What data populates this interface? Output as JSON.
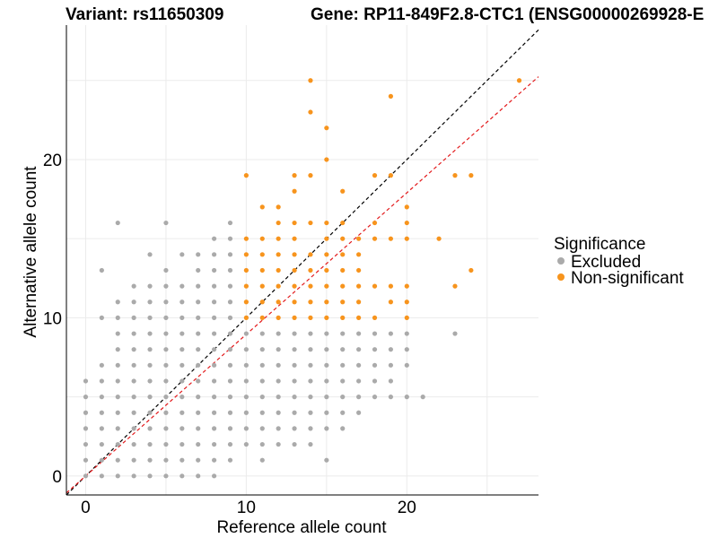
{
  "chart_data": {
    "type": "scatter",
    "title_left": "Variant: rs11650309",
    "title_right": "Gene: RP11-849F2.8-CTC1 (ENSG00000269928-E",
    "xlabel": "Reference allele count",
    "ylabel": "Alternative allele count",
    "xlim": [
      -1.2,
      28.2
    ],
    "ylim": [
      -1.2,
      28.5
    ],
    "x_ticks": [
      0,
      10,
      20
    ],
    "y_ticks": [
      0,
      10,
      20
    ],
    "grid": true,
    "legend": {
      "title": "Significance",
      "position": "right",
      "entries": [
        {
          "label": "Excluded",
          "color": "#aaaaaa"
        },
        {
          "label": "Non-significant",
          "color": "#f7941d"
        }
      ]
    },
    "reference_lines": [
      {
        "name": "identity",
        "slope": 1,
        "intercept": 0,
        "color": "#000000",
        "style": "dashed"
      },
      {
        "name": "fit",
        "slope": 0.895,
        "intercept": 0,
        "color": "#e31a1c",
        "style": "dashed"
      }
    ],
    "series": [
      {
        "name": "Excluded",
        "color": "#aaaaaa",
        "points": [
          [
            0,
            0
          ],
          [
            0,
            1
          ],
          [
            0,
            2
          ],
          [
            0,
            3
          ],
          [
            0,
            4
          ],
          [
            0,
            5
          ],
          [
            0,
            6
          ],
          [
            1,
            0
          ],
          [
            1,
            1
          ],
          [
            1,
            2
          ],
          [
            1,
            3
          ],
          [
            1,
            4
          ],
          [
            1,
            5
          ],
          [
            1,
            6
          ],
          [
            1,
            7
          ],
          [
            1,
            10
          ],
          [
            1,
            13
          ],
          [
            2,
            0
          ],
          [
            2,
            1
          ],
          [
            2,
            2
          ],
          [
            2,
            3
          ],
          [
            2,
            4
          ],
          [
            2,
            5
          ],
          [
            2,
            6
          ],
          [
            2,
            7
          ],
          [
            2,
            8
          ],
          [
            2,
            9
          ],
          [
            2,
            10
          ],
          [
            2,
            11
          ],
          [
            2,
            16
          ],
          [
            3,
            0
          ],
          [
            3,
            1
          ],
          [
            3,
            2
          ],
          [
            3,
            3
          ],
          [
            3,
            4
          ],
          [
            3,
            5
          ],
          [
            3,
            6
          ],
          [
            3,
            7
          ],
          [
            3,
            8
          ],
          [
            3,
            9
          ],
          [
            3,
            10
          ],
          [
            3,
            11
          ],
          [
            3,
            12
          ],
          [
            4,
            0
          ],
          [
            4,
            1
          ],
          [
            4,
            2
          ],
          [
            4,
            3
          ],
          [
            4,
            4
          ],
          [
            4,
            5
          ],
          [
            4,
            6
          ],
          [
            4,
            7
          ],
          [
            4,
            8
          ],
          [
            4,
            9
          ],
          [
            4,
            10
          ],
          [
            4,
            11
          ],
          [
            4,
            12
          ],
          [
            4,
            14
          ],
          [
            5,
            0
          ],
          [
            5,
            1
          ],
          [
            5,
            2
          ],
          [
            5,
            3
          ],
          [
            5,
            4
          ],
          [
            5,
            5
          ],
          [
            5,
            6
          ],
          [
            5,
            7
          ],
          [
            5,
            8
          ],
          [
            5,
            9
          ],
          [
            5,
            10
          ],
          [
            5,
            11
          ],
          [
            5,
            12
          ],
          [
            5,
            13
          ],
          [
            5,
            16
          ],
          [
            6,
            0
          ],
          [
            6,
            1
          ],
          [
            6,
            2
          ],
          [
            6,
            3
          ],
          [
            6,
            4
          ],
          [
            6,
            5
          ],
          [
            6,
            6
          ],
          [
            6,
            7
          ],
          [
            6,
            8
          ],
          [
            6,
            9
          ],
          [
            6,
            10
          ],
          [
            6,
            11
          ],
          [
            6,
            12
          ],
          [
            6,
            14
          ],
          [
            7,
            0
          ],
          [
            7,
            1
          ],
          [
            7,
            2
          ],
          [
            7,
            3
          ],
          [
            7,
            4
          ],
          [
            7,
            5
          ],
          [
            7,
            6
          ],
          [
            7,
            7
          ],
          [
            7,
            8
          ],
          [
            7,
            9
          ],
          [
            7,
            10
          ],
          [
            7,
            11
          ],
          [
            7,
            12
          ],
          [
            7,
            13
          ],
          [
            7,
            14
          ],
          [
            8,
            0
          ],
          [
            8,
            1
          ],
          [
            8,
            2
          ],
          [
            8,
            3
          ],
          [
            8,
            4
          ],
          [
            8,
            5
          ],
          [
            8,
            6
          ],
          [
            8,
            7
          ],
          [
            8,
            8
          ],
          [
            8,
            9
          ],
          [
            8,
            10
          ],
          [
            8,
            11
          ],
          [
            8,
            12
          ],
          [
            8,
            13
          ],
          [
            8,
            14
          ],
          [
            8,
            15
          ],
          [
            9,
            1
          ],
          [
            9,
            2
          ],
          [
            9,
            3
          ],
          [
            9,
            4
          ],
          [
            9,
            5
          ],
          [
            9,
            6
          ],
          [
            9,
            7
          ],
          [
            9,
            8
          ],
          [
            9,
            9
          ],
          [
            9,
            10
          ],
          [
            9,
            11
          ],
          [
            9,
            12
          ],
          [
            9,
            13
          ],
          [
            9,
            14
          ],
          [
            9,
            15
          ],
          [
            9,
            16
          ],
          [
            10,
            2
          ],
          [
            10,
            3
          ],
          [
            10,
            4
          ],
          [
            10,
            5
          ],
          [
            10,
            6
          ],
          [
            10,
            7
          ],
          [
            10,
            8
          ],
          [
            10,
            9
          ],
          [
            11,
            1
          ],
          [
            11,
            2
          ],
          [
            11,
            3
          ],
          [
            11,
            4
          ],
          [
            11,
            5
          ],
          [
            11,
            6
          ],
          [
            11,
            7
          ],
          [
            11,
            8
          ],
          [
            11,
            9
          ],
          [
            12,
            2
          ],
          [
            12,
            3
          ],
          [
            12,
            4
          ],
          [
            12,
            5
          ],
          [
            12,
            6
          ],
          [
            12,
            7
          ],
          [
            12,
            8
          ],
          [
            12,
            9
          ],
          [
            13,
            2
          ],
          [
            13,
            3
          ],
          [
            13,
            4
          ],
          [
            13,
            5
          ],
          [
            13,
            6
          ],
          [
            13,
            7
          ],
          [
            13,
            8
          ],
          [
            13,
            9
          ],
          [
            14,
            2
          ],
          [
            14,
            3
          ],
          [
            14,
            4
          ],
          [
            14,
            5
          ],
          [
            14,
            6
          ],
          [
            14,
            7
          ],
          [
            14,
            8
          ],
          [
            14,
            9
          ],
          [
            15,
            1
          ],
          [
            15,
            3
          ],
          [
            15,
            4
          ],
          [
            15,
            5
          ],
          [
            15,
            6
          ],
          [
            15,
            7
          ],
          [
            15,
            8
          ],
          [
            15,
            9
          ],
          [
            16,
            3
          ],
          [
            16,
            4
          ],
          [
            16,
            5
          ],
          [
            16,
            6
          ],
          [
            16,
            7
          ],
          [
            16,
            8
          ],
          [
            16,
            9
          ],
          [
            17,
            4
          ],
          [
            17,
            5
          ],
          [
            17,
            6
          ],
          [
            17,
            7
          ],
          [
            17,
            8
          ],
          [
            17,
            9
          ],
          [
            18,
            5
          ],
          [
            18,
            6
          ],
          [
            18,
            7
          ],
          [
            18,
            8
          ],
          [
            18,
            9
          ],
          [
            19,
            5
          ],
          [
            19,
            6
          ],
          [
            19,
            7
          ],
          [
            19,
            8
          ],
          [
            19,
            9
          ],
          [
            20,
            5
          ],
          [
            20,
            7
          ],
          [
            20,
            8
          ],
          [
            20,
            9
          ],
          [
            21,
            5
          ],
          [
            23,
            9
          ]
        ]
      },
      {
        "name": "Non-significant",
        "color": "#f7941d",
        "points": [
          [
            10,
            10
          ],
          [
            10,
            11
          ],
          [
            10,
            12
          ],
          [
            10,
            13
          ],
          [
            10,
            14
          ],
          [
            10,
            15
          ],
          [
            10,
            19
          ],
          [
            11,
            10
          ],
          [
            11,
            11
          ],
          [
            11,
            12
          ],
          [
            11,
            13
          ],
          [
            11,
            14
          ],
          [
            11,
            15
          ],
          [
            11,
            17
          ],
          [
            12,
            10
          ],
          [
            12,
            11
          ],
          [
            12,
            12
          ],
          [
            12,
            13
          ],
          [
            12,
            14
          ],
          [
            12,
            15
          ],
          [
            12,
            16
          ],
          [
            12,
            17
          ],
          [
            13,
            10
          ],
          [
            13,
            11
          ],
          [
            13,
            12
          ],
          [
            13,
            13
          ],
          [
            13,
            14
          ],
          [
            13,
            15
          ],
          [
            13,
            16
          ],
          [
            13,
            18
          ],
          [
            13,
            19
          ],
          [
            14,
            10
          ],
          [
            14,
            11
          ],
          [
            14,
            12
          ],
          [
            14,
            13
          ],
          [
            14,
            14
          ],
          [
            14,
            16
          ],
          [
            14,
            19
          ],
          [
            14,
            23
          ],
          [
            14,
            25
          ],
          [
            15,
            10
          ],
          [
            15,
            11
          ],
          [
            15,
            12
          ],
          [
            15,
            13
          ],
          [
            15,
            14
          ],
          [
            15,
            15
          ],
          [
            15,
            16
          ],
          [
            15,
            20
          ],
          [
            15,
            22
          ],
          [
            16,
            10
          ],
          [
            16,
            11
          ],
          [
            16,
            12
          ],
          [
            16,
            13
          ],
          [
            16,
            14
          ],
          [
            16,
            15
          ],
          [
            16,
            16
          ],
          [
            16,
            18
          ],
          [
            17,
            10
          ],
          [
            17,
            11
          ],
          [
            17,
            12
          ],
          [
            17,
            13
          ],
          [
            17,
            14
          ],
          [
            17,
            15
          ],
          [
            18,
            10
          ],
          [
            18,
            12
          ],
          [
            18,
            15
          ],
          [
            18,
            16
          ],
          [
            18,
            19
          ],
          [
            19,
            11
          ],
          [
            19,
            12
          ],
          [
            19,
            15
          ],
          [
            19,
            19
          ],
          [
            19,
            24
          ],
          [
            20,
            10
          ],
          [
            20,
            11
          ],
          [
            20,
            12
          ],
          [
            20,
            15
          ],
          [
            20,
            16
          ],
          [
            20,
            17
          ],
          [
            22,
            15
          ],
          [
            23,
            12
          ],
          [
            23,
            19
          ],
          [
            24,
            13
          ],
          [
            24,
            19
          ],
          [
            27,
            25
          ]
        ]
      }
    ]
  }
}
